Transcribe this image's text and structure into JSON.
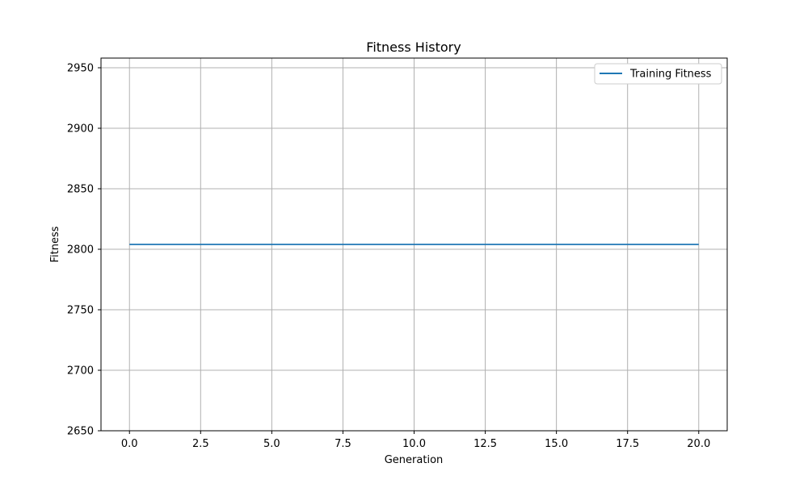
{
  "chart_data": {
    "type": "line",
    "title": "Fitness History",
    "xlabel": "Generation",
    "ylabel": "Fitness",
    "xlim": [
      -1,
      21
    ],
    "ylim": [
      2650,
      2958
    ],
    "x_ticks": [
      0.0,
      2.5,
      5.0,
      7.5,
      10.0,
      12.5,
      15.0,
      17.5,
      20.0
    ],
    "x_tick_labels": [
      "0.0",
      "2.5",
      "5.0",
      "7.5",
      "10.0",
      "12.5",
      "15.0",
      "17.5",
      "20.0"
    ],
    "y_ticks": [
      2650,
      2700,
      2750,
      2800,
      2850,
      2900,
      2950
    ],
    "y_tick_labels": [
      "2650",
      "2700",
      "2750",
      "2800",
      "2850",
      "2900",
      "2950"
    ],
    "grid": true,
    "legend_position": "top-right",
    "series": [
      {
        "name": "Training Fitness",
        "color": "#1f77b4",
        "x": [
          0,
          1,
          2,
          3,
          4,
          5,
          6,
          7,
          8,
          9,
          10,
          11,
          12,
          13,
          14,
          15,
          16,
          17,
          18,
          19,
          20
        ],
        "y": [
          2804,
          2804,
          2804,
          2804,
          2804,
          2804,
          2804,
          2804,
          2804,
          2804,
          2804,
          2804,
          2804,
          2804,
          2804,
          2804,
          2804,
          2804,
          2804,
          2804,
          2804
        ]
      }
    ]
  }
}
